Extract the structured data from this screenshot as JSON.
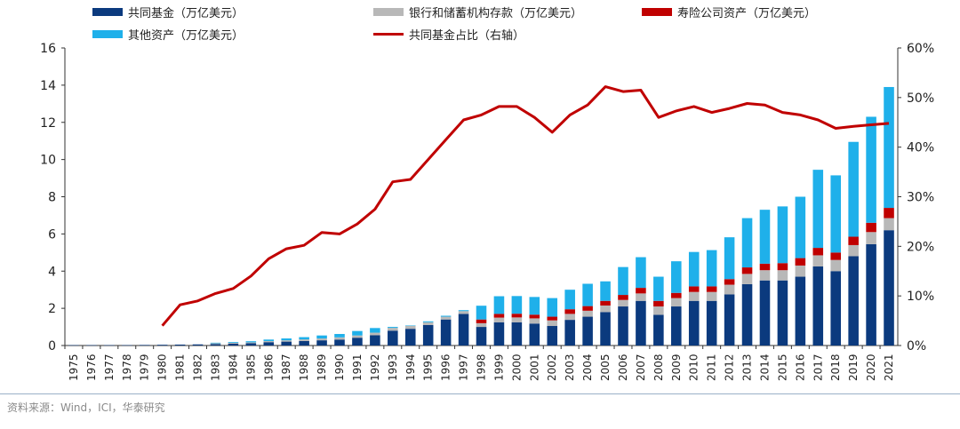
{
  "legend": [
    {
      "label": "共同基金（万亿美元）",
      "color": "#0b3a7e",
      "kind": "bar"
    },
    {
      "label": "银行和储蓄机构存款（万亿美元）",
      "color": "#b8b8b8",
      "kind": "bar"
    },
    {
      "label": "寿险公司资产（万亿美元）",
      "color": "#c00000",
      "kind": "bar"
    },
    {
      "label": "其他资产（万亿美元）",
      "color": "#1fb0ea",
      "kind": "bar"
    },
    {
      "label": "共同基金占比（右轴）",
      "color": "#c00000",
      "kind": "line"
    }
  ],
  "source": "资料来源：Wind，ICI，华泰研究",
  "chart_data": {
    "type": "bar",
    "stacked": true,
    "categories": [
      "1975",
      "1976",
      "1977",
      "1978",
      "1979",
      "1980",
      "1981",
      "1982",
      "1983",
      "1984",
      "1985",
      "1986",
      "1987",
      "1988",
      "1989",
      "1990",
      "1991",
      "1992",
      "1993",
      "1994",
      "1995",
      "1996",
      "1997",
      "1998",
      "1999",
      "2000",
      "2001",
      "2002",
      "2003",
      "2004",
      "2005",
      "2006",
      "2007",
      "2008",
      "2009",
      "2010",
      "2011",
      "2012",
      "2013",
      "2014",
      "2015",
      "2016",
      "2017",
      "2018",
      "2019",
      "2020",
      "2021"
    ],
    "ylim": [
      0,
      16
    ],
    "yticks": [
      0,
      2,
      4,
      6,
      8,
      10,
      12,
      14,
      16
    ],
    "y2lim": [
      0,
      60
    ],
    "y2ticks": [
      "0%",
      "10%",
      "20%",
      "30%",
      "40%",
      "50%",
      "60%"
    ],
    "grid": false,
    "legend_position": "top",
    "series": [
      {
        "name": "共同基金（万亿美元）",
        "color": "#0b3a7e",
        "values": [
          0.02,
          0.02,
          0.02,
          0.02,
          0.03,
          0.04,
          0.05,
          0.06,
          0.08,
          0.1,
          0.12,
          0.18,
          0.21,
          0.24,
          0.28,
          0.32,
          0.42,
          0.55,
          0.8,
          0.9,
          1.1,
          1.4,
          1.7,
          1.0,
          1.25,
          1.25,
          1.18,
          1.05,
          1.38,
          1.55,
          1.8,
          2.1,
          2.4,
          1.65,
          2.1,
          2.4,
          2.4,
          2.75,
          3.3,
          3.5,
          3.5,
          3.7,
          4.25,
          4.0,
          4.8,
          5.45,
          6.2
        ]
      },
      {
        "name": "银行和储蓄机构存款（万亿美元）",
        "color": "#b8b8b8",
        "values": [
          0,
          0,
          0,
          0,
          0,
          0,
          0,
          0,
          0.04,
          0.05,
          0.05,
          0.06,
          0.07,
          0.09,
          0.1,
          0.12,
          0.12,
          0.14,
          0.15,
          0.16,
          0.15,
          0.15,
          0.15,
          0.2,
          0.25,
          0.26,
          0.28,
          0.3,
          0.32,
          0.32,
          0.35,
          0.35,
          0.4,
          0.45,
          0.45,
          0.48,
          0.48,
          0.52,
          0.55,
          0.55,
          0.55,
          0.6,
          0.6,
          0.6,
          0.6,
          0.65,
          0.65
        ]
      },
      {
        "name": "寿险公司资产（万亿美元）",
        "color": "#c00000",
        "values": [
          0,
          0,
          0,
          0,
          0,
          0,
          0,
          0,
          0,
          0,
          0,
          0,
          0,
          0,
          0,
          0,
          0,
          0,
          0,
          0,
          0,
          0,
          0,
          0.2,
          0.2,
          0.2,
          0.2,
          0.2,
          0.25,
          0.25,
          0.25,
          0.27,
          0.3,
          0.3,
          0.28,
          0.3,
          0.3,
          0.3,
          0.35,
          0.35,
          0.38,
          0.4,
          0.4,
          0.4,
          0.45,
          0.5,
          0.55
        ]
      },
      {
        "name": "其他资产（万亿美元）",
        "color": "#1fb0ea",
        "values": [
          0,
          0,
          0,
          0,
          0,
          0,
          0,
          0,
          0.03,
          0.04,
          0.06,
          0.08,
          0.1,
          0.12,
          0.16,
          0.18,
          0.24,
          0.25,
          0.05,
          0.02,
          0.05,
          0.05,
          0.05,
          0.74,
          0.95,
          0.95,
          0.95,
          1.0,
          1.05,
          1.2,
          1.05,
          1.5,
          1.65,
          1.3,
          1.7,
          1.85,
          1.95,
          2.25,
          2.65,
          2.9,
          3.05,
          3.3,
          4.2,
          4.15,
          5.1,
          5.7,
          6.5
        ]
      },
      {
        "name": "共同基金占比（右轴）",
        "color": "#c00000",
        "kind": "line",
        "axis": "right",
        "values": [
          null,
          null,
          null,
          null,
          null,
          4.0,
          8.2,
          9.0,
          10.5,
          11.5,
          14.0,
          17.5,
          19.5,
          20.2,
          22.8,
          22.5,
          24.5,
          27.5,
          33.0,
          33.5,
          37.5,
          41.5,
          45.5,
          46.5,
          48.2,
          48.2,
          46.0,
          43.0,
          46.5,
          48.5,
          52.2,
          51.2,
          51.5,
          46.0,
          47.3,
          48.2,
          47.0,
          47.8,
          48.8,
          48.5,
          47.0,
          46.5,
          45.5,
          43.8,
          44.2,
          44.5,
          44.8
        ]
      }
    ]
  }
}
